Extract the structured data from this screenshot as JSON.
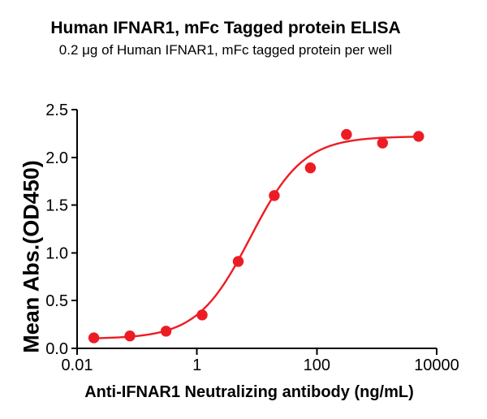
{
  "chart_data": {
    "type": "scatter",
    "title": "Human IFNAR1, mFc Tagged protein ELISA",
    "subtitle": "0.2 μg of Human IFNAR1, mFc tagged protein per well",
    "xlabel": "Anti-IFNAR1 Neutralizing antibody (ng/mL)",
    "ylabel": "Mean Abs.(OD450)",
    "x_scale": "log10",
    "xlim": [
      0.01,
      10000
    ],
    "ylim": [
      0.0,
      2.5
    ],
    "x_ticks": [
      0.01,
      1,
      100,
      10000
    ],
    "x_tick_labels": [
      "0.01",
      "1",
      "100",
      "10000"
    ],
    "y_ticks": [
      0.0,
      0.5,
      1.0,
      1.5,
      2.0,
      2.5
    ],
    "y_tick_labels": [
      "0.0",
      "0.5",
      "1.0",
      "1.5",
      "2.0",
      "2.5"
    ],
    "grid": false,
    "legend": "none",
    "series": [
      {
        "marker": "filled-circle",
        "color": "#ED1C24",
        "x": [
          0.019,
          0.076,
          0.305,
          1.22,
          4.88,
          19.5,
          78.1,
          312.5,
          1250,
          5000
        ],
        "y": [
          0.11,
          0.13,
          0.18,
          0.35,
          0.91,
          1.6,
          1.89,
          2.24,
          2.15,
          2.22
        ]
      }
    ],
    "fit_curve": {
      "model": "4PL",
      "bottom": 0.1,
      "top": 2.22,
      "logEC50": 0.89,
      "hill": 0.98,
      "color": "#ED1C24"
    }
  },
  "colors": {
    "background": "#FFFFFF",
    "axis": "#000000",
    "text": "#000000"
  }
}
